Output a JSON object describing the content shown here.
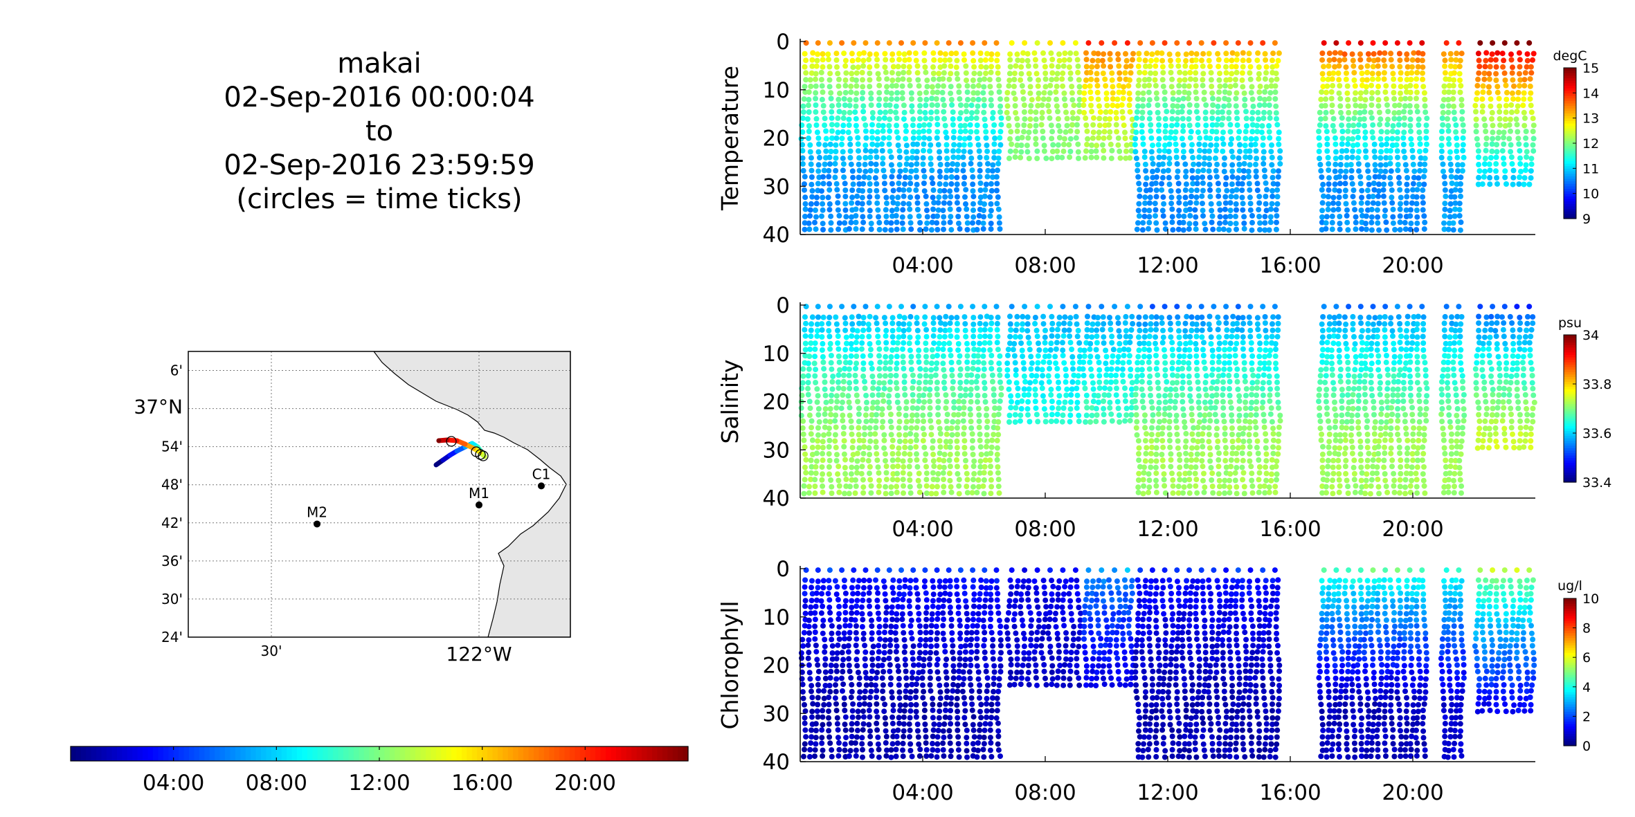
{
  "title": {
    "lines": [
      "makai",
      "02-Sep-2016 00:00:04",
      "to",
      "02-Sep-2016 23:59:59",
      "(circles = time ticks)"
    ]
  },
  "map": {
    "lat_ticks": [
      "6'",
      "37°N",
      "54'",
      "48'",
      "42'",
      "36'",
      "30'",
      "24'"
    ],
    "lat_values": [
      37.1,
      37.0,
      36.9,
      36.8,
      36.7,
      36.6,
      36.5,
      36.4
    ],
    "lon_ticks": [
      "30'",
      "122°W"
    ],
    "lon_values": [
      -122.5,
      -122.0
    ],
    "lon_range": [
      -122.7,
      -121.78
    ],
    "lat_range": [
      36.4,
      37.15
    ],
    "stations": [
      {
        "name": "C1",
        "lon": -121.85,
        "lat": 36.797
      },
      {
        "name": "M1",
        "lon": -122.0,
        "lat": 36.747
      },
      {
        "name": "M2",
        "lon": -122.39,
        "lat": 36.697
      }
    ],
    "land_color": "#e6e6e6"
  },
  "time_colorbar": {
    "ticks": [
      "04:00",
      "08:00",
      "12:00",
      "16:00",
      "20:00"
    ],
    "tick_hours": [
      4,
      8,
      12,
      16,
      20
    ],
    "range_hours": [
      0,
      24
    ],
    "colormap": "jet"
  },
  "chart_data": [
    {
      "type": "scatter",
      "ylabel": "Temperature",
      "unit": "degC",
      "x_range_hours": [
        0,
        24
      ],
      "x_ticks": [
        "04:00",
        "08:00",
        "12:00",
        "16:00",
        "20:00"
      ],
      "x_tick_hours": [
        4,
        8,
        12,
        16,
        20
      ],
      "ylim": [
        40,
        0
      ],
      "y_ticks": [
        0,
        10,
        20,
        30,
        40
      ],
      "clim": [
        9,
        15
      ],
      "c_ticks": [
        9,
        10,
        11,
        12,
        13,
        14,
        15
      ],
      "colormap": "jet",
      "segments": [
        {
          "start": 0.0,
          "end": 6.6,
          "max_depth": 40,
          "surface": 13.3,
          "deep": 10.6
        },
        {
          "start": 6.7,
          "end": 9.2,
          "max_depth": 25,
          "surface": 12.6,
          "deep": 11.9
        },
        {
          "start": 9.2,
          "end": 10.9,
          "max_depth": 25,
          "surface": 13.8,
          "deep": 11.9
        },
        {
          "start": 10.9,
          "end": 15.7,
          "max_depth": 40,
          "surface": 13.6,
          "deep": 10.6
        },
        {
          "start": 16.9,
          "end": 20.5,
          "max_depth": 40,
          "surface": 14.3,
          "deep": 10.6
        },
        {
          "start": 20.9,
          "end": 21.7,
          "max_depth": 40,
          "surface": 14.0,
          "deep": 10.7
        },
        {
          "start": 22.0,
          "end": 24.0,
          "max_depth": 30,
          "surface": 15.0,
          "deep": 11.0
        }
      ]
    },
    {
      "type": "scatter",
      "ylabel": "Salinity",
      "unit": "psu",
      "x_range_hours": [
        0,
        24
      ],
      "x_ticks": [
        "04:00",
        "08:00",
        "12:00",
        "16:00",
        "20:00"
      ],
      "x_tick_hours": [
        4,
        8,
        12,
        16,
        20
      ],
      "ylim": [
        40,
        0
      ],
      "y_ticks": [
        0,
        10,
        20,
        30,
        40
      ],
      "clim": [
        33.4,
        34.0
      ],
      "c_ticks": [
        34,
        33.8,
        33.6,
        33.4
      ],
      "colormap": "jet",
      "segments": [
        {
          "start": 0.0,
          "end": 6.6,
          "max_depth": 40,
          "surface": 33.56,
          "deep": 33.72
        },
        {
          "start": 6.7,
          "end": 9.2,
          "max_depth": 25,
          "surface": 33.57,
          "deep": 33.65
        },
        {
          "start": 9.2,
          "end": 10.9,
          "max_depth": 25,
          "surface": 33.55,
          "deep": 33.68
        },
        {
          "start": 10.9,
          "end": 15.7,
          "max_depth": 40,
          "surface": 33.53,
          "deep": 33.72
        },
        {
          "start": 16.9,
          "end": 20.5,
          "max_depth": 40,
          "surface": 33.54,
          "deep": 33.72
        },
        {
          "start": 20.9,
          "end": 21.7,
          "max_depth": 40,
          "surface": 33.53,
          "deep": 33.72
        },
        {
          "start": 22.0,
          "end": 24.0,
          "max_depth": 30,
          "surface": 33.5,
          "deep": 33.75
        }
      ]
    },
    {
      "type": "scatter",
      "ylabel": "Chlorophyll",
      "unit": "ug/l",
      "x_range_hours": [
        0,
        24
      ],
      "x_ticks": [
        "04:00",
        "08:00",
        "12:00",
        "16:00",
        "20:00"
      ],
      "x_tick_hours": [
        4,
        8,
        12,
        16,
        20
      ],
      "ylim": [
        40,
        0
      ],
      "y_ticks": [
        0,
        10,
        20,
        30,
        40
      ],
      "clim": [
        0,
        10
      ],
      "c_ticks": [
        0,
        2,
        4,
        6,
        8,
        10
      ],
      "colormap": "jet",
      "segments": [
        {
          "start": 0.0,
          "end": 6.6,
          "max_depth": 40,
          "surface": 1.6,
          "deep": 0.5
        },
        {
          "start": 6.7,
          "end": 9.2,
          "max_depth": 25,
          "surface": 1.2,
          "deep": 0.6
        },
        {
          "start": 9.2,
          "end": 10.9,
          "max_depth": 25,
          "surface": 2.8,
          "deep": 0.8
        },
        {
          "start": 10.9,
          "end": 15.7,
          "max_depth": 40,
          "surface": 1.5,
          "deep": 0.5
        },
        {
          "start": 16.9,
          "end": 20.5,
          "max_depth": 40,
          "surface": 4.5,
          "deep": 0.6
        },
        {
          "start": 20.9,
          "end": 21.7,
          "max_depth": 40,
          "surface": 4.2,
          "deep": 0.8
        },
        {
          "start": 22.0,
          "end": 24.0,
          "max_depth": 30,
          "surface": 5.5,
          "deep": 1.2
        }
      ]
    }
  ]
}
